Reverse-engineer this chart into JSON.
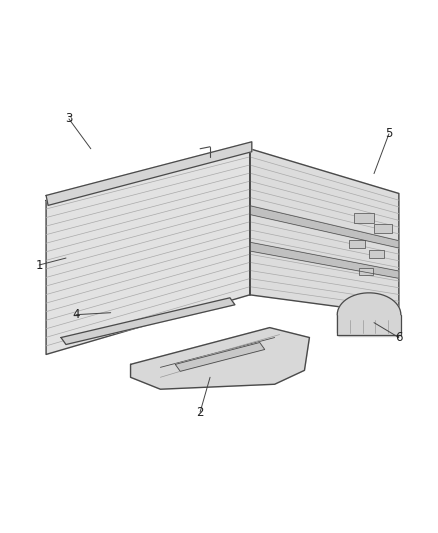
{
  "background_color": "#ffffff",
  "line_color": "#4a4a4a",
  "fill_light": "#e8e8e8",
  "fill_mid": "#d8d8d8",
  "fill_dark": "#c8c8c8",
  "rib_color": "#aaaaaa",
  "label_color": "#222222",
  "label_fontsize": 8.5,
  "figsize": [
    4.38,
    5.33
  ],
  "dpi": 100
}
